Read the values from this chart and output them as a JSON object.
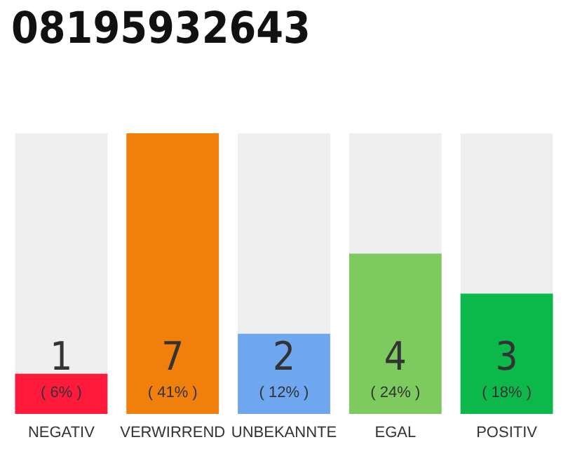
{
  "chart_data": {
    "type": "bar",
    "title": "08195932643",
    "categories": [
      "NEGATIV",
      "VERWIRREND",
      "UNBEKANNTE",
      "EGAL",
      "POSITIV"
    ],
    "values": [
      1,
      7,
      2,
      4,
      3
    ],
    "colors": [
      "#ff1a3c",
      "#f07f0c",
      "#6ea6ef",
      "#7dcb5e",
      "#0db84b"
    ],
    "data_labels": true,
    "annotations": [
      "( 6% )",
      "( 41% )",
      "( 12% )",
      "( 24% )",
      "( 18% )"
    ],
    "grid": false
  }
}
